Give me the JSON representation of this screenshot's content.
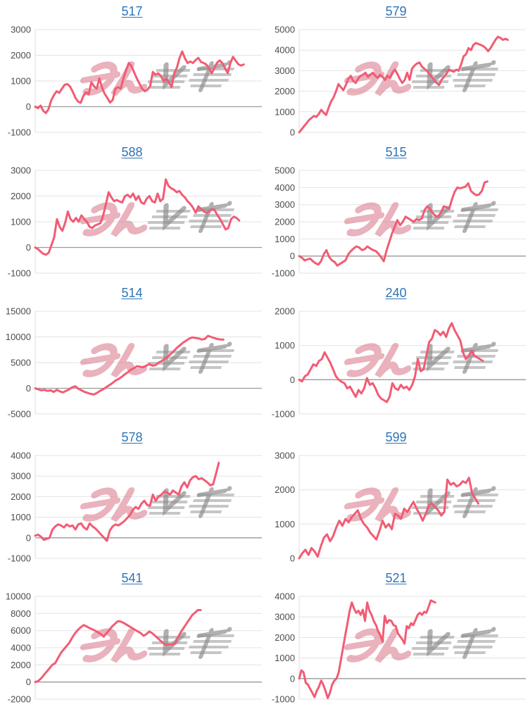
{
  "page": {
    "background": "#ffffff",
    "layout": "2x5-chart-grid"
  },
  "colors": {
    "line": "#f25b74",
    "title_link": "#2e74b5",
    "axis_label": "#4c4c4c",
    "gridline": "#e3e3e3",
    "zero_line": "#9a9a9a",
    "axis_line": "#dddddd",
    "watermark_pink": "#dd8495",
    "watermark_gray": "#8f8f8f",
    "watermark_lines_gray": "#a8a8a8"
  },
  "watermark": {
    "icon": "minrepo-watermark-icon",
    "text": "みんレポ"
  },
  "chart_data": [
    {
      "type": "line",
      "title": "517",
      "ylim": [
        -1000,
        3000
      ],
      "ytick": 1000,
      "end_frac": 0.92,
      "values": [
        0,
        -60,
        40,
        -160,
        -250,
        -90,
        250,
        450,
        600,
        540,
        700,
        850,
        880,
        790,
        590,
        350,
        200,
        150,
        420,
        560,
        480,
        950,
        790,
        700,
        1100,
        740,
        500,
        340,
        160,
        260,
        700,
        760,
        700,
        1100,
        1420,
        1700,
        1580,
        1340,
        1100,
        900,
        700,
        600,
        660,
        800,
        1350,
        1240,
        1300,
        1190,
        1000,
        1090,
        950,
        760,
        1300,
        1520,
        1900,
        2150,
        1880,
        1700,
        1760,
        1700,
        1810,
        1900,
        1740,
        1700,
        1640,
        1490,
        1300,
        1500,
        1710,
        1800,
        1690,
        1490,
        1310,
        1700,
        1940,
        1790,
        1650,
        1600,
        1640
      ]
    },
    {
      "type": "line",
      "title": "579",
      "ylim": [
        0,
        5000
      ],
      "ytick": 1000,
      "end_frac": 0.92,
      "values": [
        0,
        150,
        300,
        450,
        600,
        700,
        800,
        750,
        900,
        1100,
        950,
        850,
        1200,
        1500,
        1700,
        2000,
        2350,
        2200,
        2050,
        2300,
        2600,
        2750,
        2500,
        2400,
        2600,
        2750,
        2800,
        2900,
        2700,
        2800,
        2900,
        2750,
        2650,
        2800,
        2700,
        2550,
        2750,
        2650,
        2900,
        3050,
        2850,
        2600,
        2400,
        2550,
        2900,
        2550,
        3100,
        3250,
        3350,
        3400,
        3200,
        3100,
        3000,
        2850,
        2700,
        2550,
        2400,
        2300,
        2550,
        2700,
        2850,
        3050,
        3000,
        2950,
        3050,
        3000,
        3300,
        3700,
        3800,
        4100,
        4000,
        4250,
        4350,
        4300,
        4250,
        4200,
        4100,
        3950,
        4100,
        4300,
        4500,
        4650,
        4600,
        4500,
        4550,
        4500
      ]
    },
    {
      "type": "line",
      "title": "588",
      "ylim": [
        -1000,
        3000
      ],
      "ytick": 1000,
      "end_frac": 0.9,
      "values": [
        0,
        -60,
        -160,
        -250,
        -280,
        -200,
        100,
        400,
        1100,
        800,
        650,
        950,
        1400,
        1100,
        1000,
        1150,
        1000,
        1250,
        1100,
        1000,
        800,
        760,
        860,
        900,
        950,
        1250,
        1700,
        2150,
        1950,
        1800,
        1850,
        1790,
        1750,
        2000,
        2050,
        1950,
        2100,
        1850,
        2000,
        1750,
        1700,
        1900,
        2000,
        1800,
        1750,
        2100,
        1800,
        1900,
        2650,
        2400,
        2300,
        2250,
        2150,
        2200,
        2050,
        1950,
        1800,
        1700,
        1550,
        1350,
        1600,
        1500,
        1400,
        1350,
        1400,
        1500,
        1450,
        1250,
        1100,
        900,
        700,
        760,
        1100,
        1200,
        1150,
        1050
      ]
    },
    {
      "type": "line",
      "title": "515",
      "ylim": [
        -1000,
        5000
      ],
      "ytick": 1000,
      "end_frac": 0.83,
      "values": [
        0,
        -100,
        -250,
        -200,
        -150,
        -300,
        -420,
        -500,
        -300,
        100,
        350,
        -60,
        -250,
        -350,
        -560,
        -450,
        -350,
        -250,
        100,
        300,
        450,
        560,
        500,
        350,
        400,
        560,
        450,
        350,
        300,
        150,
        -60,
        -300,
        300,
        800,
        1300,
        1700,
        2100,
        1800,
        2000,
        2300,
        2200,
        2100,
        2000,
        2150,
        2100,
        2200,
        2700,
        2900,
        2750,
        2500,
        2350,
        2300,
        2550,
        2900,
        2850,
        2750,
        3300,
        3750,
        4000,
        3950,
        4000,
        4050,
        4250,
        3800,
        3650,
        3550,
        3600,
        3800,
        4300,
        4350
      ]
    },
    {
      "type": "line",
      "title": "514",
      "ylim": [
        -5000,
        15000
      ],
      "ytick": 5000,
      "end_frac": 0.83,
      "values": [
        0,
        -200,
        -400,
        -300,
        -500,
        -400,
        -700,
        -300,
        -600,
        -800,
        -500,
        -200,
        200,
        400,
        -100,
        -400,
        -700,
        -900,
        -1100,
        -1200,
        -900,
        -500,
        -200,
        200,
        600,
        1000,
        1500,
        1800,
        2200,
        2700,
        3100,
        3600,
        3900,
        4300,
        4200,
        4100,
        4400,
        4700,
        4400,
        4500,
        5000,
        5300,
        5700,
        6200,
        6700,
        7300,
        7900,
        8400,
        8900,
        9300,
        9700,
        9900,
        9800,
        9700,
        9500,
        9600,
        10200,
        10000,
        9800,
        9600,
        9500,
        9500
      ]
    },
    {
      "type": "line",
      "title": "240",
      "ylim": [
        -1000,
        2000
      ],
      "ytick": 1000,
      "end_frac": 0.81,
      "values": [
        0,
        -50,
        100,
        150,
        300,
        450,
        400,
        550,
        600,
        800,
        650,
        500,
        300,
        100,
        0,
        -60,
        -100,
        -250,
        -200,
        -350,
        -500,
        -300,
        -400,
        -250,
        50,
        -150,
        -100,
        -250,
        -450,
        -550,
        -600,
        -650,
        -500,
        -100,
        -250,
        -300,
        -150,
        -250,
        -200,
        -300,
        -150,
        100,
        600,
        250,
        300,
        700,
        1100,
        1200,
        1450,
        1400,
        1300,
        1400,
        1250,
        1500,
        1650,
        1450,
        1300,
        1150,
        800,
        600,
        700,
        850,
        700,
        650,
        600,
        550
      ]
    },
    {
      "type": "line",
      "title": "578",
      "ylim": [
        -1000,
        4000
      ],
      "ytick": 1000,
      "end_frac": 0.81,
      "values": [
        100,
        150,
        50,
        -100,
        -50,
        0,
        400,
        550,
        650,
        600,
        500,
        650,
        550,
        600,
        400,
        650,
        700,
        500,
        400,
        700,
        550,
        450,
        300,
        150,
        0,
        -150,
        350,
        550,
        650,
        600,
        700,
        800,
        950,
        1100,
        1350,
        1500,
        1400,
        1650,
        1800,
        1600,
        1550,
        2100,
        1800,
        2000,
        2100,
        2250,
        2200,
        2100,
        2300,
        2200,
        2100,
        2500,
        2700,
        2450,
        2800,
        2950,
        3000,
        2850,
        2900,
        2800,
        2700,
        2550,
        2600,
        3100,
        3650
      ]
    },
    {
      "type": "line",
      "title": "599",
      "ylim": [
        0,
        3000
      ],
      "ytick": 1000,
      "end_frac": 0.79,
      "values": [
        0,
        150,
        250,
        100,
        300,
        200,
        50,
        350,
        600,
        700,
        500,
        650,
        900,
        1100,
        950,
        1150,
        1050,
        1200,
        1300,
        1400,
        1150,
        1000,
        900,
        750,
        650,
        550,
        800,
        1100,
        900,
        1000,
        850,
        1300,
        1250,
        1150,
        1450,
        1350,
        1500,
        1650,
        1450,
        1300,
        1100,
        1300,
        1550,
        1600,
        1500,
        1400,
        1250,
        1350,
        2300,
        2150,
        2200,
        2100,
        2150,
        2250,
        2200,
        2350,
        1900,
        1750,
        1600
      ]
    },
    {
      "type": "line",
      "title": "541",
      "ylim": [
        -2000,
        10000
      ],
      "ytick": 2000,
      "end_frac": 0.73,
      "values": [
        0,
        100,
        400,
        800,
        1200,
        1600,
        2000,
        2200,
        2800,
        3400,
        3800,
        4200,
        4600,
        5200,
        5700,
        6100,
        6400,
        6650,
        6500,
        6300,
        6150,
        6000,
        5800,
        5600,
        5300,
        5700,
        6100,
        6500,
        6800,
        7100,
        7050,
        6900,
        6700,
        6500,
        6300,
        6100,
        5900,
        5700,
        5400,
        5600,
        5900,
        5700,
        5400,
        5100,
        4800,
        4500,
        4300,
        4400,
        4350,
        4500,
        5200,
        5800,
        6300,
        6800,
        7300,
        7800,
        8100,
        8400,
        8400
      ]
    },
    {
      "type": "line",
      "title": "521",
      "ylim": [
        -1000,
        4000
      ],
      "ytick": 1000,
      "end_frac": 0.6,
      "values": [
        0,
        400,
        300,
        -200,
        -300,
        -500,
        -700,
        -900,
        -600,
        -400,
        -100,
        -300,
        -600,
        -950,
        -700,
        -300,
        -100,
        0,
        300,
        900,
        1500,
        2100,
        2700,
        3300,
        3700,
        3400,
        3200,
        3300,
        3100,
        3350,
        2800,
        3700,
        3300,
        3100,
        2800,
        2600,
        2300,
        2100,
        1800,
        3050,
        2700,
        2850,
        2800,
        2600,
        2550,
        2200,
        2050,
        1900,
        1700,
        2550,
        2450,
        2700,
        2600,
        2850,
        3100,
        3200,
        3100,
        3250,
        3200,
        3500,
        3800,
        3750,
        3700
      ]
    }
  ]
}
